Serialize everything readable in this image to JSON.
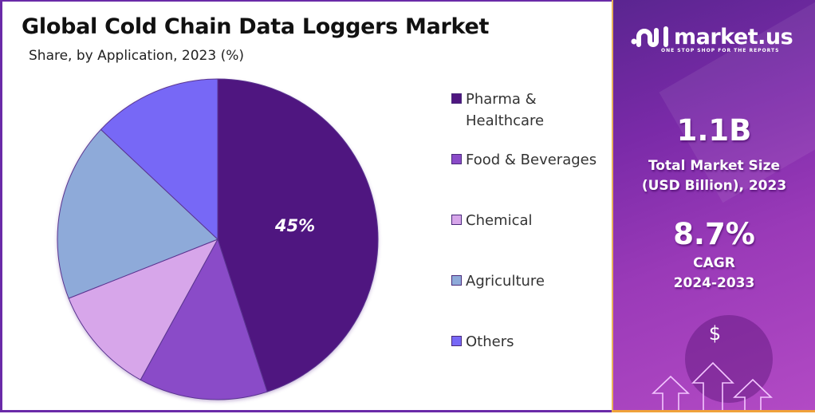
{
  "header": {
    "title": "Global Cold Chain Data Loggers Market",
    "subtitle": "Share, by Application, 2023 (%)"
  },
  "chart_data": {
    "type": "pie",
    "title": "Global Cold Chain Data Loggers Market",
    "subtitle": "Share, by Application, 2023 (%)",
    "categories": [
      "Pharma & Healthcare",
      "Food & Beverages",
      "Chemical",
      "Agriculture",
      "Others"
    ],
    "values": [
      45,
      13,
      11,
      18,
      13
    ],
    "colors": [
      "#4f1680",
      "#8a4bc8",
      "#d7a6ea",
      "#8eaad9",
      "#7768f6"
    ],
    "data_labels": [
      "45%",
      "",
      "",
      "",
      ""
    ],
    "start_angle": 0,
    "direction": "clockwise",
    "legend_position": "right"
  },
  "legend": {
    "items": [
      {
        "label_line1": "Pharma &",
        "label_line2": "Healthcare",
        "color": "#4f1680"
      },
      {
        "label_line1": "Food & Beverages",
        "label_line2": "",
        "color": "#8a4bc8"
      },
      {
        "label_line1": "Chemical",
        "label_line2": "",
        "color": "#d7a6ea"
      },
      {
        "label_line1": "Agriculture",
        "label_line2": "",
        "color": "#8eaad9"
      },
      {
        "label_line1": "Others",
        "label_line2": "",
        "color": "#7768f6"
      }
    ]
  },
  "pie_label": "45%",
  "sidebar": {
    "brand": "market.us",
    "tagline": "ONE STOP SHOP FOR THE REPORTS",
    "market_size_value": "1.1B",
    "market_size_label_line1": "Total Market Size",
    "market_size_label_line2": "(USD Billion), 2023",
    "cagr_value": "8.7%",
    "cagr_label_line1": "CAGR",
    "cagr_label_line2": "2024-2033",
    "dollar_symbol": "$",
    "accent_color": "#7a2aa8",
    "border_color": "#f0a23a"
  }
}
